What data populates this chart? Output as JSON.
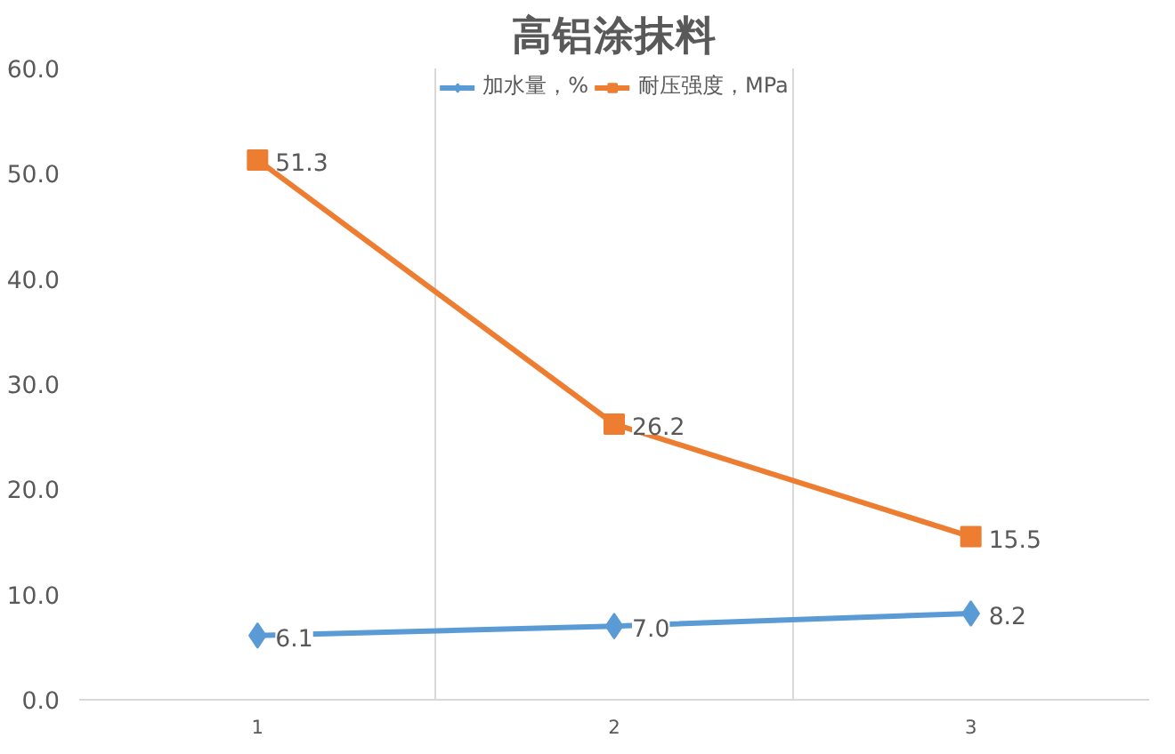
{
  "chart_data": {
    "type": "line",
    "title": "高铝涂抹料",
    "categories": [
      "1",
      "2",
      "3"
    ],
    "series": [
      {
        "name": "加水量，%",
        "color": "#5b9bd5",
        "values": [
          6.1,
          7.0,
          8.2
        ],
        "value_labels": [
          "6.1",
          "7.0",
          "8.2"
        ],
        "marker": "diamond"
      },
      {
        "name": "耐压强度，MPa",
        "color": "#ed7d31",
        "values": [
          51.3,
          26.2,
          15.5
        ],
        "value_labels": [
          "51.3",
          "26.2",
          "15.5"
        ],
        "marker": "square"
      }
    ],
    "ylim": [
      0,
      60
    ],
    "yticks": [
      {
        "value": 0,
        "label": "0.0"
      },
      {
        "value": 10,
        "label": "10.0"
      },
      {
        "value": 20,
        "label": "20.0"
      },
      {
        "value": 30,
        "label": "30.0"
      },
      {
        "value": 40,
        "label": "40.0"
      },
      {
        "value": 50,
        "label": "50.0"
      },
      {
        "value": 60,
        "label": "60.0"
      }
    ],
    "grid": "x",
    "legend": "top",
    "line_style": "solid"
  }
}
